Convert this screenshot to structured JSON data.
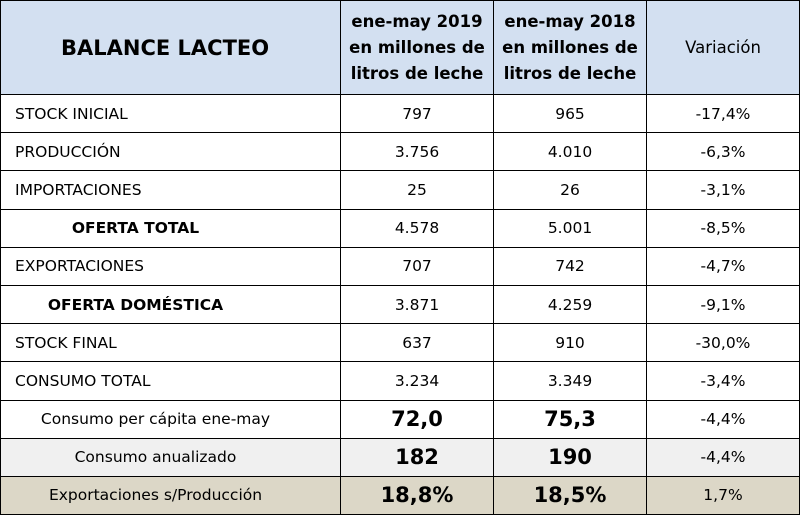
{
  "header": {
    "title": "BALANCE LACTEO",
    "col2019": [
      "ene-may 2019",
      "en millones de",
      "litros de leche"
    ],
    "col2018": [
      "ene-may 2018",
      "en millones de",
      "litros de leche"
    ],
    "variation": "Variación"
  },
  "rows": [
    {
      "label": "STOCK INICIAL",
      "v2019": "797",
      "v2018": "965",
      "var": "-17,4%"
    },
    {
      "label": "PRODUCCIÓN",
      "v2019": "3.756",
      "v2018": "4.010",
      "var": "-6,3%"
    },
    {
      "label": "IMPORTACIONES",
      "v2019": "25",
      "v2018": "26",
      "var": "-3,1%"
    },
    {
      "label": "OFERTA TOTAL",
      "v2019": "4.578",
      "v2018": "5.001",
      "var": "-8,5%"
    },
    {
      "label": "EXPORTACIONES",
      "v2019": "707",
      "v2018": "742",
      "var": "-4,7%"
    },
    {
      "label": "OFERTA DOMÉSTICA",
      "v2019": "3.871",
      "v2018": "4.259",
      "var": "-9,1%"
    },
    {
      "label": "STOCK FINAL",
      "v2019": "637",
      "v2018": "910",
      "var": "-30,0%"
    },
    {
      "label": "CONSUMO TOTAL",
      "v2019": "3.234",
      "v2018": "3.349",
      "var": "-3,4%"
    },
    {
      "label": "Consumo per cápita ene-may",
      "v2019": "72,0",
      "v2018": "75,3",
      "var": "-4,4%"
    },
    {
      "label": "Consumo anualizado",
      "v2019": "182",
      "v2018": "190",
      "var": "-4,4%"
    },
    {
      "label": "Exportaciones s/Producción",
      "v2019": "18,8%",
      "v2018": "18,5%",
      "var": "1,7%"
    }
  ]
}
